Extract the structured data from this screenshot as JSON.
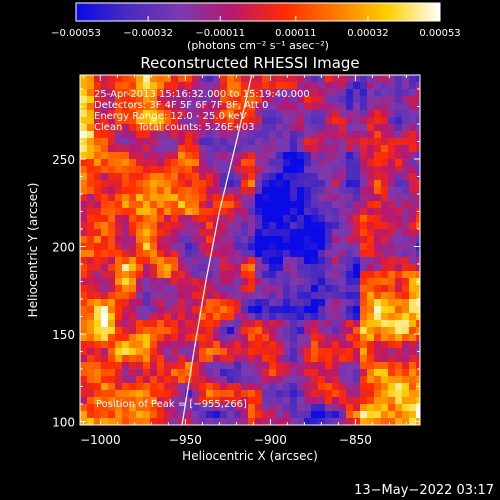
{
  "chart_data": {
    "type": "heatmap",
    "title": "Reconstructed RHESSI Image",
    "xlabel": "Heliocentric X (arcsec)",
    "ylabel": "Heliocentric Y (arcsec)",
    "xlim": [
      -1012,
      -812
    ],
    "ylim": [
      98,
      298
    ],
    "x_ticks": [
      -1000,
      -950,
      -900,
      -850
    ],
    "x_tick_labels": [
      "−1000",
      "−950",
      "−900",
      "−850"
    ],
    "y_ticks": [
      100,
      150,
      200,
      250
    ],
    "y_tick_labels": [
      "100",
      "150",
      "200",
      "250"
    ],
    "colorbar": {
      "range": [
        -0.00053,
        0.00053
      ],
      "ticks": [
        -0.00053,
        -0.00032,
        -0.00011,
        0.00011,
        0.00032,
        0.00053
      ],
      "tick_labels": [
        "−0.00053",
        "−0.00032",
        "−0.00011",
        "0.00011",
        "0.00032",
        "0.00053"
      ],
      "units_label": "(photons cm⁻² s⁻¹ asec⁻²)",
      "colors": [
        "#0a0ae6",
        "#4a2bbd",
        "#7a3ab0",
        "#b8186e",
        "#ff2a00",
        "#ff7a00",
        "#ffd000",
        "#ffffff"
      ]
    },
    "annotations": [
      "25-Apr-2013 15:16:32.000 to 15:19:40.000",
      "Detectors: 3F 4F 5F 6F 7F 8F, Att 0",
      "Energy Range: 12.0 - 25.0 keV",
      "Clean     Total counts: 5.26E+03"
    ],
    "peak_label": "Position of Peak = [−955,266]",
    "limb_curve": [
      [
        -952,
        98
      ],
      [
        -945,
        140
      ],
      [
        -938,
        180
      ],
      [
        -930,
        220
      ],
      [
        -920,
        260
      ],
      [
        -911,
        298
      ]
    ],
    "grid": false
  },
  "footer": {
    "date": "13−May−2022 03:17"
  }
}
